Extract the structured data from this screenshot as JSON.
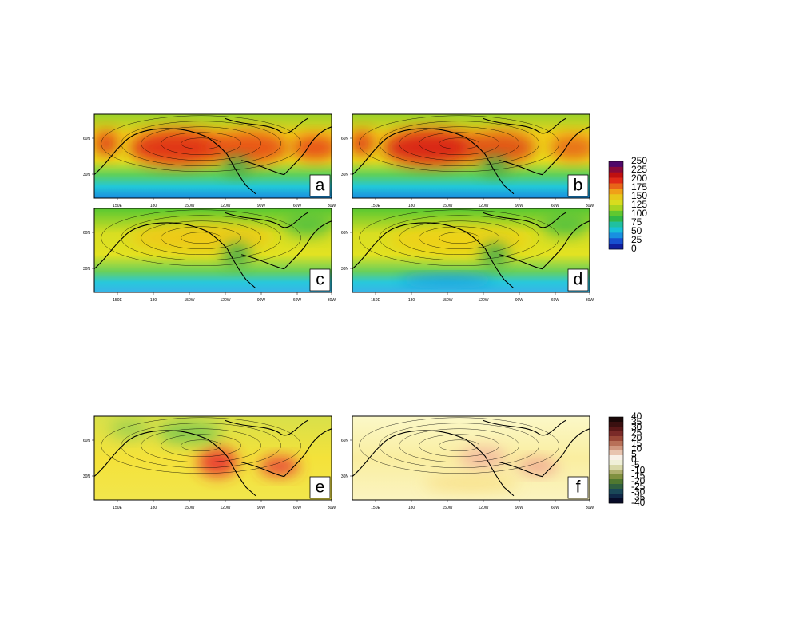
{
  "panels": [
    {
      "label": "a"
    },
    {
      "label": "b"
    },
    {
      "label": "c"
    },
    {
      "label": "d"
    },
    {
      "label": "e"
    },
    {
      "label": "f"
    }
  ],
  "lon_ticks": [
    "150E",
    "180",
    "150W",
    "120W",
    "90W",
    "60W",
    "30W"
  ],
  "lat_ticks": [
    "60N",
    "30N"
  ],
  "colorbar_top": {
    "labels": [
      250,
      225,
      200,
      175,
      150,
      125,
      100,
      75,
      50,
      25,
      0
    ]
  },
  "colorbar_bottom": {
    "labels": [
      40,
      35,
      30,
      25,
      20,
      15,
      10,
      5,
      0,
      -5,
      -10,
      -15,
      -20,
      -25,
      -30,
      -35,
      -40
    ]
  }
}
